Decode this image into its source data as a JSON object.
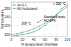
{
  "chart_data": {
    "type": "line",
    "xlabel": "% Evaporated Distillate",
    "ylabel": "Temperature",
    "x": [
      0,
      10,
      20,
      30,
      40,
      50,
      60,
      70,
      80,
      90,
      100
    ],
    "series": [
      {
        "name": "Jet A-1",
        "color": "#5ba3d9",
        "marker": "circle",
        "values": [
          158,
          163,
          169,
          176,
          186,
          198,
          212,
          228,
          248,
          270,
          290
        ]
      },
      {
        "name": "AtJ-Isobutanol",
        "color": "#70ad47",
        "marker": "triangle",
        "values": [
          152,
          155,
          159,
          164,
          172,
          185,
          202,
          224,
          252,
          280,
          298
        ]
      }
    ],
    "xlim": [
      0,
      100
    ],
    "ylim": [
      150,
      310
    ],
    "xticks": [
      0,
      20,
      40,
      60,
      80,
      100
    ],
    "yticks": [
      160,
      200,
      240,
      280
    ],
    "grid": true,
    "legend": "upper left",
    "annotations": [
      {
        "text": "Standard limits\nAtJ-SPK",
        "x": 58,
        "y": 232,
        "arrow_x": 46,
        "arrow_y": 214
      },
      {
        "text": "208 °C",
        "x": 18,
        "y": 210
      },
      {
        "text": "≥ 300 °C",
        "x": 97,
        "y": 303
      }
    ]
  }
}
